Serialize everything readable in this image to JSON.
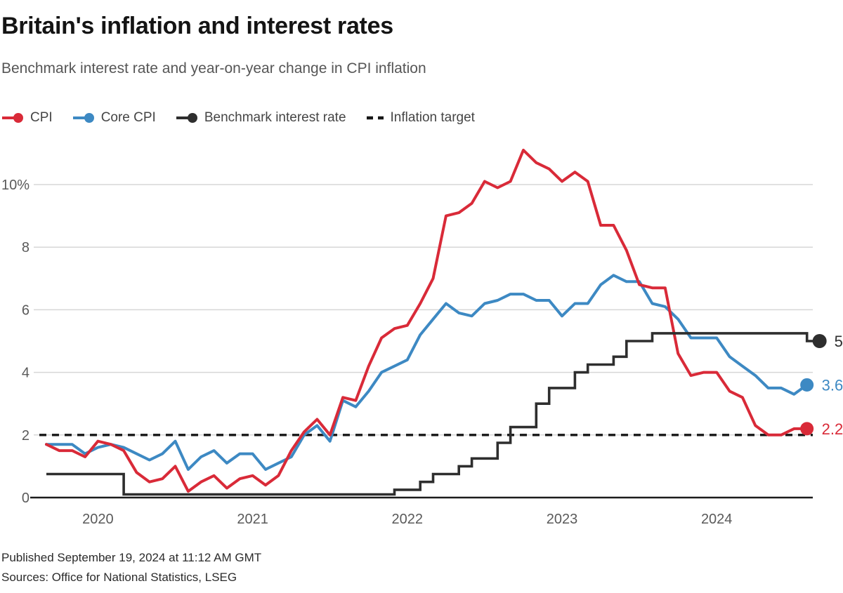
{
  "header": {
    "title": "Britain's inflation and interest rates",
    "subtitle": "Benchmark interest rate and year-on-year change in CPI inflation"
  },
  "legend": {
    "items": [
      {
        "label": "CPI",
        "color": "#d92a38",
        "marker": "line-dot"
      },
      {
        "label": "Core CPI",
        "color": "#3d89c3",
        "marker": "line-dot"
      },
      {
        "label": "Benchmark interest rate",
        "color": "#2e2e2e",
        "marker": "line-dot"
      },
      {
        "label": "Inflation target",
        "color": "#161616",
        "marker": "dashes"
      }
    ]
  },
  "chart_data": {
    "type": "line",
    "title": "Britain's inflation and interest rates",
    "subtitle": "Benchmark interest rate and year-on-year change in CPI inflation",
    "x_unit": "month",
    "x_start": "2019-09",
    "x_end": "2024-08",
    "x_tick_labels": [
      "2020",
      "2021",
      "2022",
      "2023",
      "2024"
    ],
    "y_ticks": [
      {
        "label": "10%",
        "value": 10
      },
      {
        "label": "8",
        "value": 8
      },
      {
        "label": "6",
        "value": 6
      },
      {
        "label": "4",
        "value": 4
      },
      {
        "label": "2",
        "value": 2
      },
      {
        "label": "0",
        "value": 0
      }
    ],
    "ylim": [
      0,
      11.5
    ],
    "grid": "horizontal",
    "legend_position": "top-left",
    "inflation_target": {
      "name": "Inflation target",
      "value": 2,
      "style": "dashed",
      "color": "#161616"
    },
    "series": [
      {
        "name": "CPI",
        "color": "#d92a38",
        "style": "line",
        "end_label": "2.2",
        "values": [
          1.7,
          1.5,
          1.5,
          1.3,
          1.8,
          1.7,
          1.5,
          0.8,
          0.5,
          0.6,
          1.0,
          0.2,
          0.5,
          0.7,
          0.3,
          0.6,
          0.7,
          0.4,
          0.7,
          1.5,
          2.1,
          2.5,
          2.0,
          3.2,
          3.1,
          4.2,
          5.1,
          5.4,
          5.5,
          6.2,
          7.0,
          9.0,
          9.1,
          9.4,
          10.1,
          9.9,
          10.1,
          11.1,
          10.7,
          10.5,
          10.1,
          10.4,
          10.1,
          8.7,
          8.7,
          7.9,
          6.8,
          6.7,
          6.7,
          4.6,
          3.9,
          4.0,
          4.0,
          3.4,
          3.2,
          2.3,
          2.0,
          2.0,
          2.2,
          2.2
        ]
      },
      {
        "name": "Core CPI",
        "color": "#3d89c3",
        "style": "line",
        "end_label": "3.6",
        "values": [
          1.7,
          1.7,
          1.7,
          1.4,
          1.6,
          1.7,
          1.6,
          1.4,
          1.2,
          1.4,
          1.8,
          0.9,
          1.3,
          1.5,
          1.1,
          1.4,
          1.4,
          0.9,
          1.1,
          1.3,
          2.0,
          2.3,
          1.8,
          3.1,
          2.9,
          3.4,
          4.0,
          4.2,
          4.4,
          5.2,
          5.7,
          6.2,
          5.9,
          5.8,
          6.2,
          6.3,
          6.5,
          6.5,
          6.3,
          6.3,
          5.8,
          6.2,
          6.2,
          6.8,
          7.1,
          6.9,
          6.9,
          6.2,
          6.1,
          5.7,
          5.1,
          5.1,
          5.1,
          4.5,
          4.2,
          3.9,
          3.5,
          3.5,
          3.3,
          3.6
        ]
      },
      {
        "name": "Benchmark interest rate",
        "color": "#2e2e2e",
        "style": "step",
        "end_label": "5",
        "extends_to": "2024-09",
        "values": [
          0.75,
          0.75,
          0.75,
          0.75,
          0.75,
          0.75,
          0.1,
          0.1,
          0.1,
          0.1,
          0.1,
          0.1,
          0.1,
          0.1,
          0.1,
          0.1,
          0.1,
          0.1,
          0.1,
          0.1,
          0.1,
          0.1,
          0.1,
          0.1,
          0.1,
          0.1,
          0.1,
          0.25,
          0.25,
          0.5,
          0.75,
          0.75,
          1.0,
          1.25,
          1.25,
          1.75,
          2.25,
          2.25,
          3.0,
          3.5,
          3.5,
          4.0,
          4.25,
          4.25,
          4.5,
          5.0,
          5.0,
          5.25,
          5.25,
          5.25,
          5.25,
          5.25,
          5.25,
          5.25,
          5.25,
          5.25,
          5.25,
          5.25,
          5.25,
          5.0
        ]
      }
    ]
  },
  "footer": {
    "published": "Published September 19, 2024 at 11:12 AM GMT",
    "sources": "Sources: Office for National Statistics, LSEG"
  }
}
